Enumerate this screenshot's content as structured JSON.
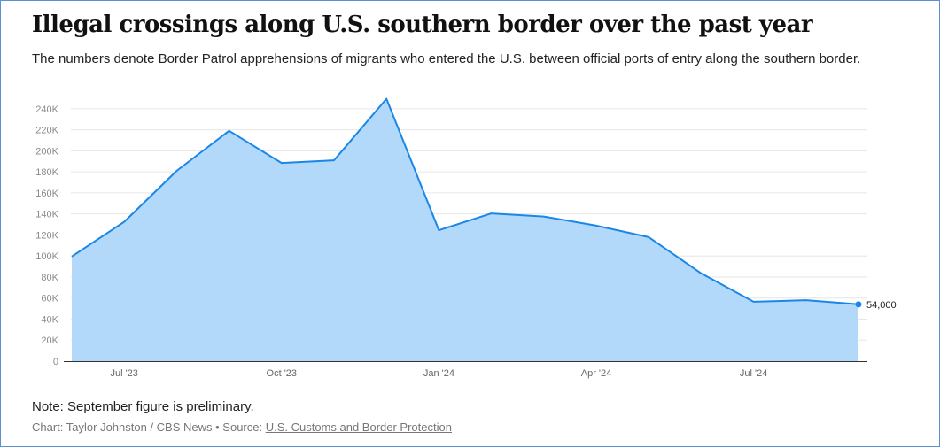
{
  "header": {
    "title": "Illegal crossings along U.S. southern border over the past year",
    "subtitle": "The numbers denote Border Patrol apprehensions of migrants who entered the U.S. between official ports of entry along the southern border."
  },
  "chart_data": {
    "type": "area",
    "title": "Illegal crossings along U.S. southern border over the past year",
    "x": [
      "2023-06",
      "2023-07",
      "2023-08",
      "2023-09",
      "2023-10",
      "2023-11",
      "2023-12",
      "2024-01",
      "2024-02",
      "2024-03",
      "2024-04",
      "2024-05",
      "2024-06",
      "2024-07",
      "2024-08",
      "2024-09"
    ],
    "series": [
      {
        "values": [
          99500,
          132500,
          181000,
          219000,
          188500,
          191000,
          249500,
          124500,
          140500,
          137500,
          128900,
          117900,
          83500,
          56500,
          58000,
          54000
        ]
      }
    ],
    "x_ticks": [
      "Jul '23",
      "Oct '23",
      "Jan '24",
      "Apr '24",
      "Jul '24"
    ],
    "y_ticks": [
      "0",
      "20K",
      "40K",
      "60K",
      "80K",
      "100K",
      "120K",
      "140K",
      "160K",
      "180K",
      "200K",
      "220K",
      "240K"
    ],
    "ylim": [
      0,
      250000
    ],
    "end_label": "54,000",
    "grid": true,
    "colors": {
      "line": "#1a87e8",
      "fill": "#b3d9fa",
      "grid": "#e6e6e6",
      "axis": "#333333"
    }
  },
  "footer": {
    "note": "Note: September figure is preliminary.",
    "credit_prefix": "Chart: Taylor Johnston / CBS News • Source: ",
    "source_link": "U.S. Customs and Border Protection"
  }
}
